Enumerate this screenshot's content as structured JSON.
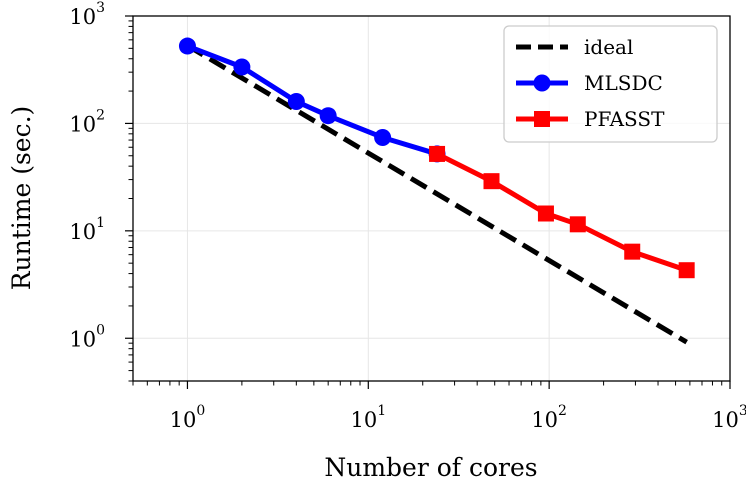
{
  "chart_data": {
    "type": "line",
    "xscale": "log",
    "yscale": "log",
    "xlim": [
      0.5,
      1000
    ],
    "ylim": [
      0.4,
      1000
    ],
    "xlabel": "Number of cores",
    "ylabel": "Runtime (sec.)",
    "grid": true,
    "legend_position": "top-right",
    "x_ticks": [
      {
        "value": 1,
        "base": "10",
        "exp": "0"
      },
      {
        "value": 10,
        "base": "10",
        "exp": "1"
      },
      {
        "value": 100,
        "base": "10",
        "exp": "2"
      },
      {
        "value": 1000,
        "base": "10",
        "exp": "3"
      }
    ],
    "y_ticks": [
      {
        "value": 1,
        "base": "10",
        "exp": "0"
      },
      {
        "value": 10,
        "base": "10",
        "exp": "1"
      },
      {
        "value": 100,
        "base": "10",
        "exp": "2"
      },
      {
        "value": 1000,
        "base": "10",
        "exp": "3"
      }
    ],
    "series": [
      {
        "name": "ideal",
        "color": "#000000",
        "style": "dashed",
        "marker": "none",
        "x": [
          1,
          576
        ],
        "y": [
          530,
          0.92
        ]
      },
      {
        "name": "MLSDC",
        "color": "#0000ff",
        "style": "solid",
        "marker": "circle",
        "x": [
          1,
          2,
          4,
          6,
          12,
          24
        ],
        "y": [
          525,
          335,
          160,
          118,
          74,
          52
        ]
      },
      {
        "name": "PFASST",
        "color": "#ff0000",
        "style": "solid",
        "marker": "square",
        "x": [
          24,
          48,
          96,
          144,
          288,
          576
        ],
        "y": [
          52,
          29,
          14.5,
          11.5,
          6.4,
          4.3
        ]
      }
    ]
  }
}
